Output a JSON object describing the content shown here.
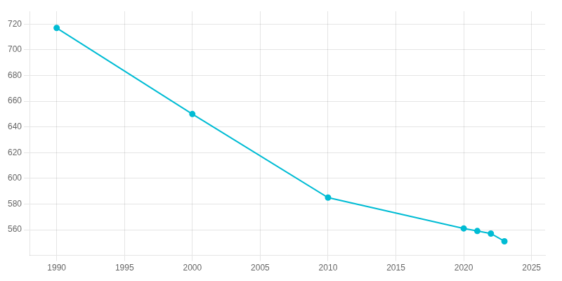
{
  "chart_data": {
    "type": "line",
    "x": [
      1990,
      2000,
      2010,
      2020,
      2021,
      2022,
      2023
    ],
    "values": [
      717,
      650,
      585,
      561,
      559,
      557,
      551
    ],
    "color": "#00bcd4",
    "marker": "circle",
    "xlim": [
      1988,
      2026
    ],
    "xticks": [
      1990,
      1995,
      2000,
      2005,
      2010,
      2015,
      2020,
      2025
    ],
    "ylim": [
      540,
      730
    ],
    "yticks": [
      560,
      580,
      600,
      620,
      640,
      660,
      680,
      700,
      720
    ],
    "grid": true
  }
}
